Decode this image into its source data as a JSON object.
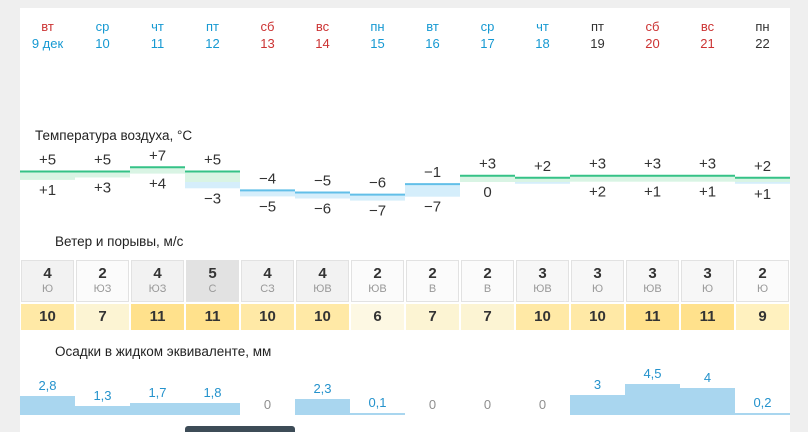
{
  "colors": {
    "red": "#cc3333",
    "blue": "#1699d2",
    "dark": "#333333",
    "page_bg": "#efefef",
    "content_bg": "#ffffff",
    "thumb": "#3d4c57"
  },
  "days": [
    {
      "name": "вт",
      "date": "9 дек",
      "name_color": "red",
      "date_color": "blue"
    },
    {
      "name": "ср",
      "date": "10",
      "name_color": "blue",
      "date_color": "blue"
    },
    {
      "name": "чт",
      "date": "11",
      "name_color": "blue",
      "date_color": "blue"
    },
    {
      "name": "пт",
      "date": "12",
      "name_color": "blue",
      "date_color": "blue"
    },
    {
      "name": "сб",
      "date": "13",
      "name_color": "red",
      "date_color": "red"
    },
    {
      "name": "вс",
      "date": "14",
      "name_color": "red",
      "date_color": "red"
    },
    {
      "name": "пн",
      "date": "15",
      "name_color": "blue",
      "date_color": "blue"
    },
    {
      "name": "вт",
      "date": "16",
      "name_color": "blue",
      "date_color": "blue"
    },
    {
      "name": "ср",
      "date": "17",
      "name_color": "blue",
      "date_color": "blue"
    },
    {
      "name": "чт",
      "date": "18",
      "name_color": "blue",
      "date_color": "blue"
    },
    {
      "name": "пт",
      "date": "19",
      "name_color": "dark",
      "date_color": "dark"
    },
    {
      "name": "сб",
      "date": "20",
      "name_color": "red",
      "date_color": "red"
    },
    {
      "name": "вс",
      "date": "21",
      "name_color": "red",
      "date_color": "red"
    },
    {
      "name": "пн",
      "date": "22",
      "name_color": "dark",
      "date_color": "dark"
    }
  ],
  "wind_speed_colors": {
    "2": "#fbfbfb",
    "3": "#f7f7f7",
    "4": "#f2f2f2",
    "5": "#e2e2e2"
  },
  "gust_colors": {
    "6": "#fdf8e3",
    "7": "#fcf4d3",
    "9": "#fff1bf",
    "10": "#ffe9a6",
    "11": "#ffe18c"
  },
  "chart_data": [
    {
      "type": "area",
      "name": "temperature",
      "title": "Температура воздуха, °C",
      "categories": [
        "вт 9 дек",
        "ср 10",
        "чт 11",
        "пт 12",
        "сб 13",
        "вс 14",
        "пн 15",
        "вт 16",
        "ср 17",
        "чт 18",
        "пт 19",
        "сб 20",
        "вс 21",
        "пн 22"
      ],
      "series": [
        {
          "name": "max",
          "values": [
            5,
            5,
            7,
            5,
            -4,
            -5,
            -6,
            -1,
            3,
            2,
            3,
            3,
            3,
            2
          ],
          "labels": [
            "+5",
            "+5",
            "+7",
            "+5",
            "−4",
            "−5",
            "−6",
            "−1",
            "+3",
            "+2",
            "+3",
            "+3",
            "+3",
            "+2"
          ]
        },
        {
          "name": "min",
          "values": [
            1,
            3,
            4,
            -3,
            -5,
            -6,
            -7,
            -7,
            0,
            null,
            2,
            1,
            1,
            1
          ],
          "labels": [
            "+1",
            "+3",
            "+4",
            "−3",
            "−5",
            "−6",
            "−7",
            "−7",
            "0",
            "",
            "+2",
            "+1",
            "+1",
            "+1"
          ]
        }
      ],
      "ylim": [
        -8,
        8
      ],
      "legend": "none",
      "colors": {
        "positive_fill": "#d9f4e4",
        "positive_line": "#35c287",
        "negative_fill": "#d5eefb",
        "negative_line": "#62bfe8"
      }
    },
    {
      "type": "table",
      "name": "wind",
      "title": "Ветер и порывы, м/с",
      "categories": [
        "вт 9 дек",
        "ср 10",
        "чт 11",
        "пт 12",
        "сб 13",
        "вс 14",
        "пн 15",
        "вт 16",
        "ср 17",
        "чт 18",
        "пт 19",
        "сб 20",
        "вс 21",
        "пн 22"
      ],
      "rows": {
        "speed": [
          4,
          2,
          4,
          5,
          4,
          4,
          2,
          2,
          2,
          3,
          3,
          3,
          3,
          2
        ],
        "direction": [
          "Ю",
          "ЮЗ",
          "ЮЗ",
          "С",
          "СЗ",
          "ЮВ",
          "ЮВ",
          "В",
          "В",
          "ЮВ",
          "Ю",
          "ЮВ",
          "Ю",
          "Ю"
        ],
        "gusts": [
          10,
          7,
          11,
          11,
          10,
          10,
          6,
          7,
          7,
          10,
          10,
          11,
          11,
          9
        ]
      }
    },
    {
      "type": "bar",
      "name": "precipitation",
      "title": "Осадки в жидком эквиваленте, мм",
      "categories": [
        "вт 9 дек",
        "ср 10",
        "чт 11",
        "пт 12",
        "сб 13",
        "вс 14",
        "пн 15",
        "вт 16",
        "ср 17",
        "чт 18",
        "пт 19",
        "сб 20",
        "вс 21",
        "пн 22"
      ],
      "values": [
        2.8,
        1.3,
        1.7,
        1.8,
        0,
        2.3,
        0.1,
        0,
        0,
        0,
        3,
        4.5,
        4,
        0.2
      ],
      "labels": [
        "2,8",
        "1,3",
        "1,7",
        "1,8",
        "0",
        "2,3",
        "0,1",
        "0",
        "0",
        "0",
        "3",
        "4,5",
        "4",
        "0,2"
      ],
      "bar_color": "#a9d6ef",
      "label_color": "#2492cc",
      "zero_label_color": "#8f8f8f"
    }
  ]
}
